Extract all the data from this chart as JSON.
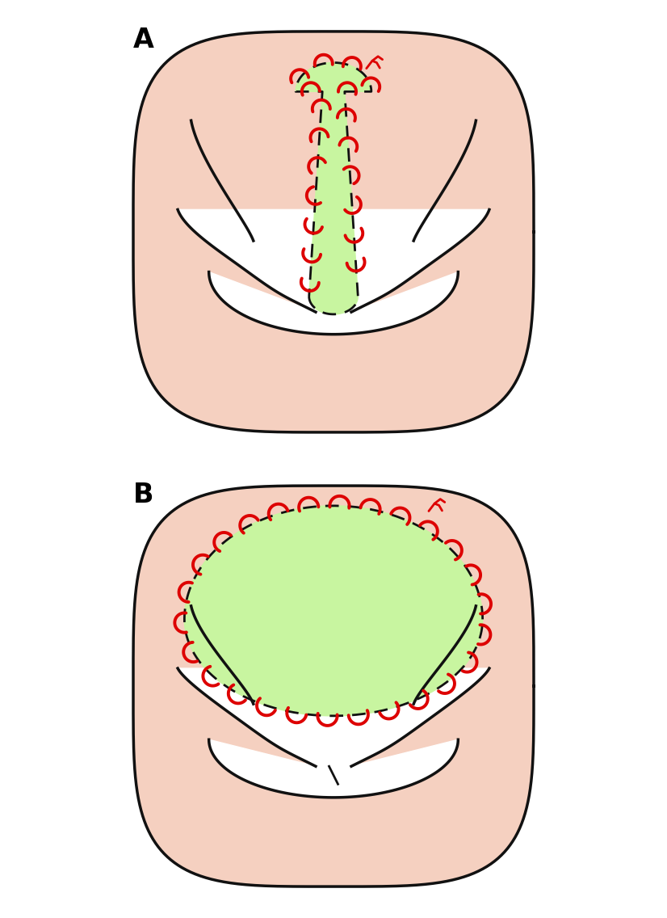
{
  "background_color": "#ffffff",
  "skin_color": "#f5d0c0",
  "skin_outline_color": "#111111",
  "green_patch_color": "#c8f5a0",
  "dashed_line_color": "#111111",
  "suture_color": "#dd0000",
  "label_color": "#000000",
  "label_A": "A",
  "label_B": "B"
}
